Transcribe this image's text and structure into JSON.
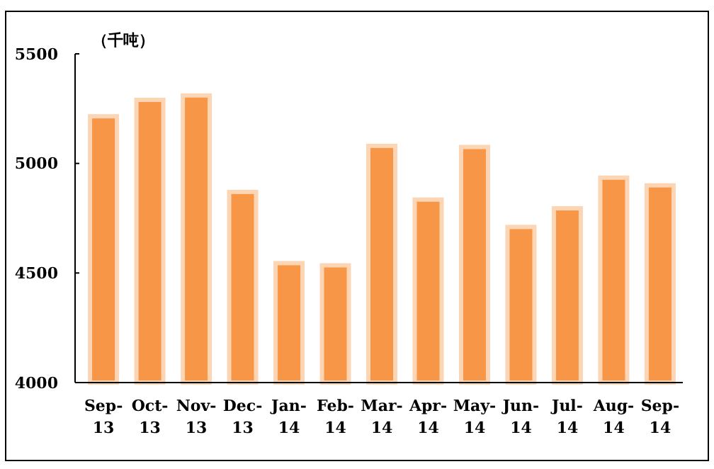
{
  "chart_data": {
    "type": "bar",
    "ylabel": "（千吨）",
    "categories": [
      "Sep-13",
      "Oct-13",
      "Nov-13",
      "Dec-13",
      "Jan-14",
      "Feb-14",
      "Mar-14",
      "Apr-14",
      "May-14",
      "Jun-14",
      "Jul-14",
      "Aug-14",
      "Sep-14"
    ],
    "values": [
      5215,
      5290,
      5310,
      4870,
      4545,
      4535,
      5080,
      4835,
      5075,
      4710,
      4795,
      4935,
      4900
    ],
    "color": "#f79646",
    "ylim": [
      4000,
      5500
    ],
    "yticks": [
      4000,
      4500,
      5000,
      5500
    ],
    "grid": false
  }
}
